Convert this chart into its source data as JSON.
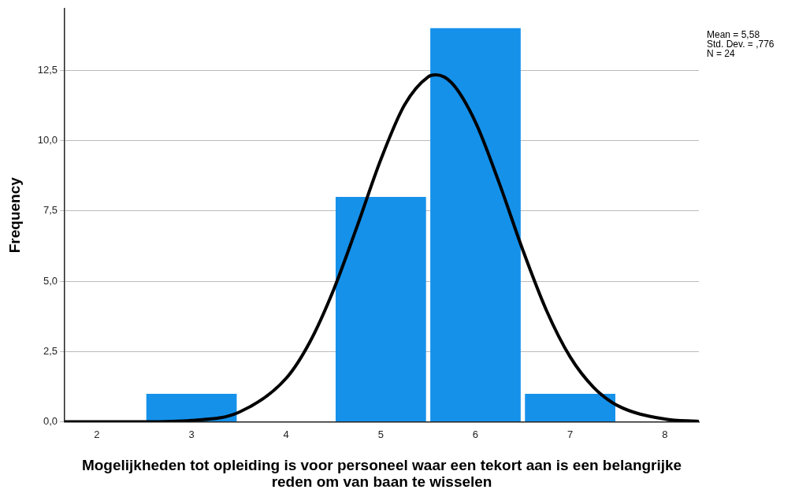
{
  "chart_data": {
    "type": "histogram",
    "xlabel": "Mogelijkheden tot opleiding is voor personeel waar een tekort aan is een belangrijke reden om van baan te wisselen",
    "ylabel": "Frequency",
    "bins": [
      2.5,
      3.5,
      4.5,
      5.5,
      6.5,
      7.5
    ],
    "values": [
      1,
      0,
      8,
      14,
      1
    ],
    "color": "#1591ea",
    "series": [
      {
        "type": "line",
        "color": "#000000",
        "x": [
          1.66,
          2,
          2.5,
          3,
          3.5,
          4,
          4.25,
          4.5,
          4.75,
          5,
          5.25,
          5.5,
          5.58,
          5.75,
          6,
          6.25,
          6.5,
          6.75,
          7,
          7.25,
          7.5,
          8,
          8.36
        ],
        "values": [
          0,
          0,
          0,
          0.05,
          0.34,
          1.55,
          2.84,
          4.69,
          6.96,
          9.33,
          11.27,
          12.27,
          12.34,
          12.05,
          10.66,
          8.5,
          6.11,
          3.96,
          2.31,
          1.22,
          0.58,
          0.1,
          0.02
        ]
      }
    ],
    "xlim": [
      1.66,
      8.36
    ],
    "xticks": [
      2,
      3,
      4,
      5,
      6,
      7,
      8
    ],
    "ylim": [
      0,
      14.7
    ],
    "yticks": [
      {
        "value": 0,
        "label": "0,0"
      },
      {
        "value": 2.5,
        "label": "2,5"
      },
      {
        "value": 5,
        "label": "5,0"
      },
      {
        "value": 7.5,
        "label": "7,5"
      },
      {
        "value": 10,
        "label": "10,0"
      },
      {
        "value": 12.5,
        "label": "12,5"
      }
    ],
    "grid": "y",
    "legend": false,
    "annotations": [
      "Mean = 5,58",
      "Std. Dev. = ,776",
      "N = 24"
    ]
  }
}
